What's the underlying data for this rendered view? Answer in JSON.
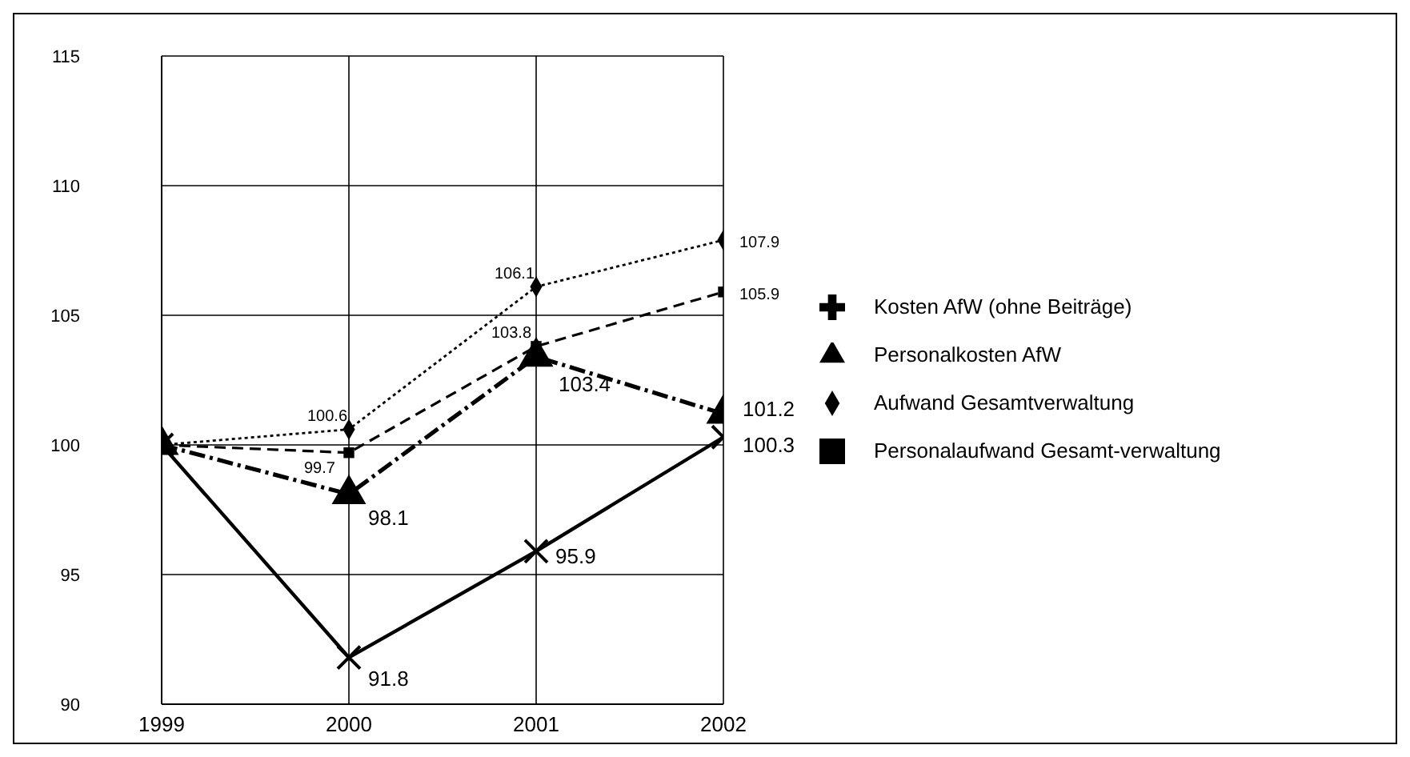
{
  "chart_data": {
    "type": "line",
    "x": [
      1999,
      2000,
      2001,
      2002
    ],
    "xlim": [
      1999,
      2002
    ],
    "xticks": [
      1999,
      2000,
      2001,
      2002
    ],
    "ylim": [
      90,
      115
    ],
    "yticks": [
      90,
      95,
      100,
      105,
      110,
      115
    ],
    "grid": true,
    "legend": "right",
    "color": "#000000",
    "series": [
      {
        "name": "Kosten AfW (ohne Beiträge)",
        "color": "#000000",
        "line_style": "solid",
        "marker": "cross",
        "values": [
          100,
          91.8,
          95.9,
          100.3
        ],
        "value_labels": [
          null,
          "91.8",
          "95.9",
          "100.3"
        ]
      },
      {
        "name": "Personalkosten AfW",
        "color": "#000000",
        "line_style": "dashdot",
        "marker": "triangle",
        "values": [
          100,
          98.1,
          103.4,
          101.2
        ],
        "value_labels": [
          null,
          "98.1",
          "103.4",
          "101.2"
        ]
      },
      {
        "name": "Aufwand Gesamtverwaltung",
        "color": "#000000",
        "line_style": "dotted",
        "marker": "diamond",
        "values": [
          100,
          100.6,
          106.1,
          107.9
        ],
        "value_labels": [
          null,
          "100.6",
          "106.1",
          "107.9"
        ]
      },
      {
        "name": "Personalaufwand Gesamt-verwaltung",
        "color": "#000000",
        "line_style": "dashed",
        "marker": "square",
        "values": [
          100,
          99.7,
          103.8,
          105.9
        ],
        "value_labels": [
          null,
          "99.7",
          "103.8",
          "105.9"
        ]
      }
    ]
  }
}
